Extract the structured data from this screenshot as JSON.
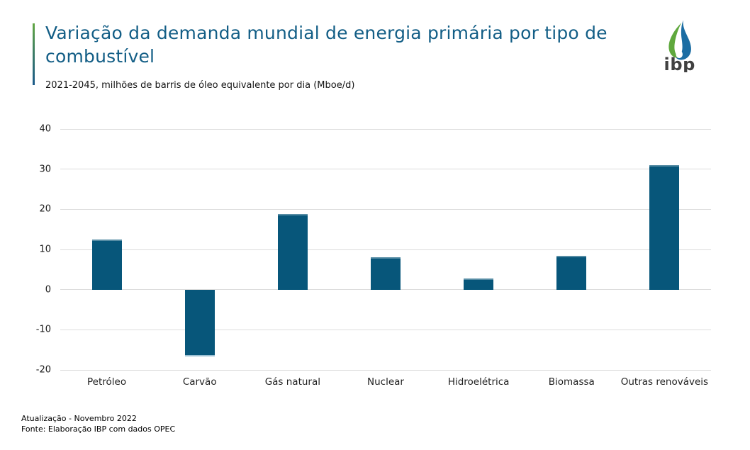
{
  "chart_data": {
    "type": "bar",
    "title": "Variação da demanda mundial de energia primária por tipo de combustível",
    "subtitle": "2021-2045, milhões de barris de óleo equivalente por dia (Mboe/d)",
    "categories": [
      "Petróleo",
      "Carvão",
      "Gás natural",
      "Nuclear",
      "Hidroelétrica",
      "Biomassa",
      "Outras renováveis"
    ],
    "values": [
      12.4,
      -16.6,
      18.9,
      8.1,
      2.8,
      8.5,
      31.0
    ],
    "ylim": [
      -20,
      40
    ],
    "yticks": [
      40,
      30,
      20,
      10,
      0,
      -10,
      -20
    ],
    "grid": true,
    "legend": "none",
    "bar_color": "#07567a",
    "gridline_color": "#dcdcdc",
    "updated": "Atualização - Novembro 2022",
    "source": "Fonte: Elaboração IBP com dados OPEC"
  },
  "header": {
    "title_color": "#135e86",
    "accent_top_color": "#62a744",
    "accent_bottom_color": "#1b5a8a"
  },
  "logo": {
    "text": "ibp",
    "green": "#5fa83d",
    "blue": "#1b6da3",
    "text_color": "#404040"
  }
}
